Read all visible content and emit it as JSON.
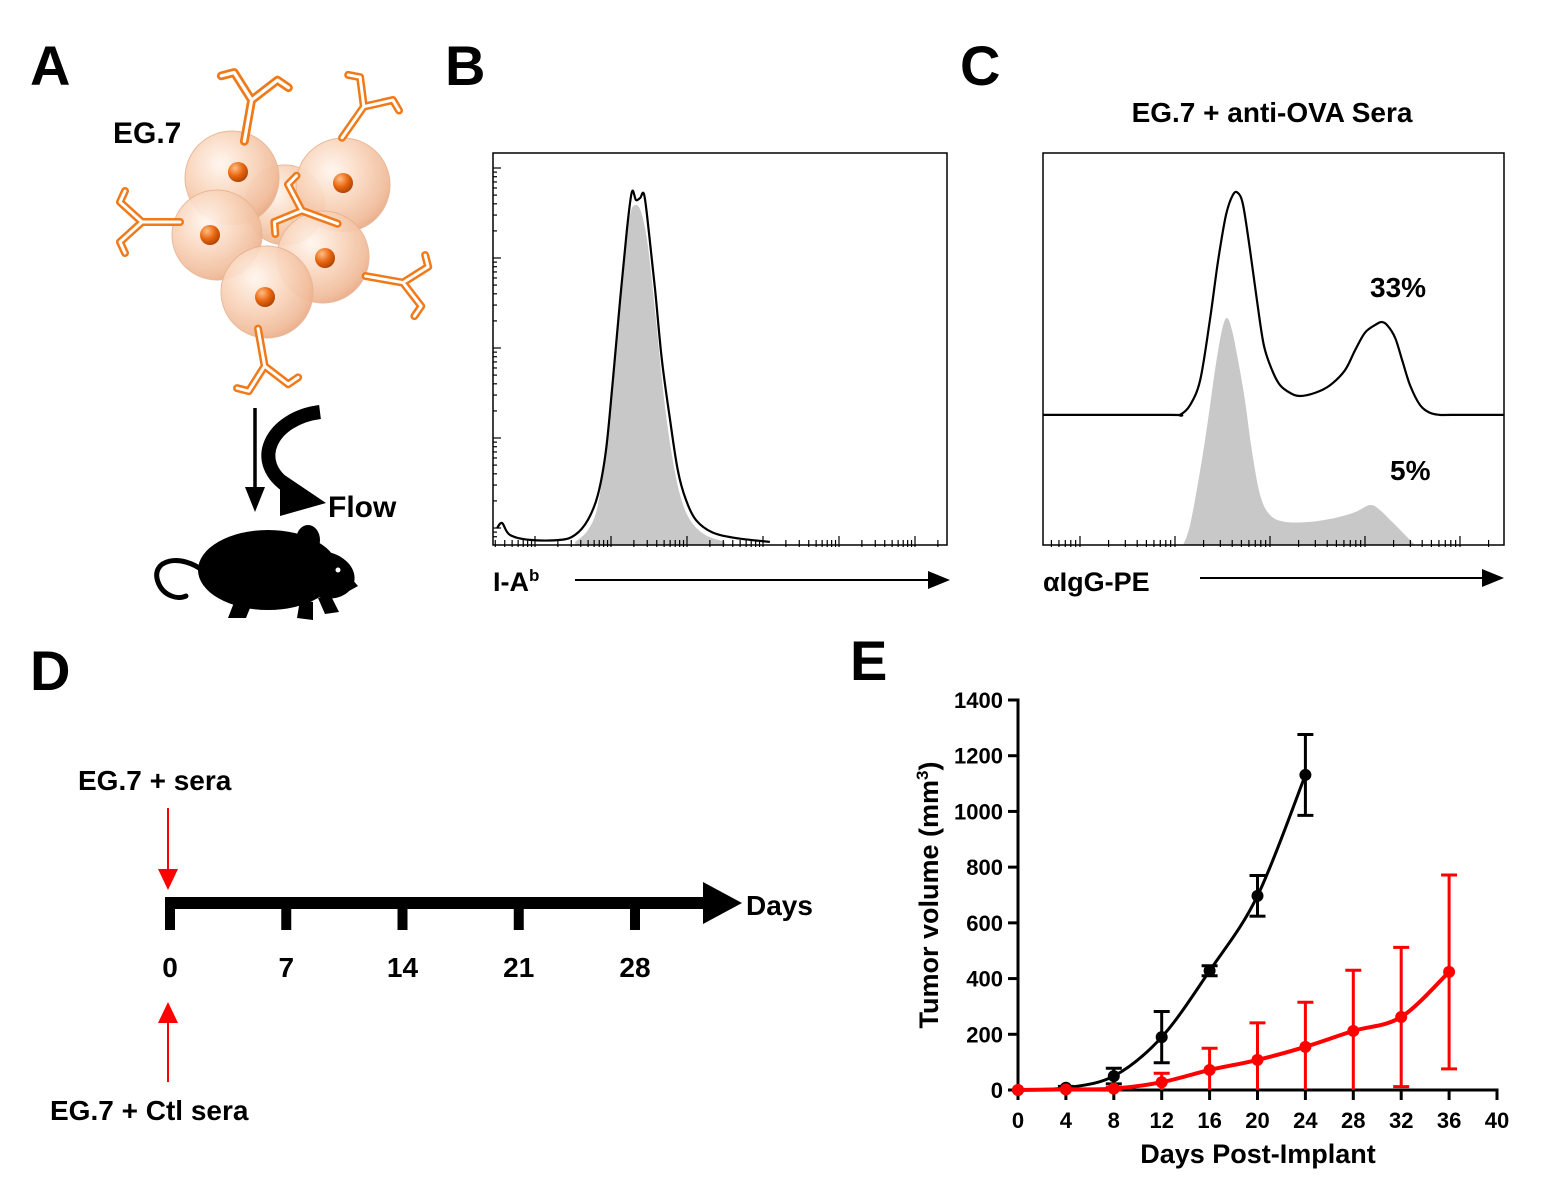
{
  "panels": {
    "A": {
      "letter": "A",
      "cell_label": "EG.7",
      "flow_label": "Flow"
    },
    "B": {
      "letter": "B"
    },
    "C": {
      "letter": "C"
    },
    "D": {
      "letter": "D",
      "top_label": "EG.7 + sera",
      "bottom_label": "EG.7 + Ctl sera",
      "axis_label": "Days",
      "ticks": [
        "0",
        "7",
        "14",
        "21",
        "28"
      ]
    },
    "E": {
      "letter": "E"
    }
  },
  "colors": {
    "antibody": "#f07a1a",
    "arrow_red": "#ff0000"
  },
  "chart_data": [
    {
      "type": "histogram",
      "xlabel": "I-A",
      "xlabel_sup": "b",
      "xlim": [
        0,
        100
      ],
      "ylim": [
        0,
        100
      ],
      "series": [
        {
          "fill": "#c8c8c8",
          "x": [
            18.1,
            20.9,
            23.1,
            25.1,
            27.1,
            28.9,
            30.2,
            31.3,
            32.6,
            34.1,
            35.9,
            37.7,
            39.4,
            41.2,
            43.4,
            46.7,
            51.1
          ],
          "y": [
            0.8,
            3.8,
            10.2,
            26.8,
            49.7,
            72.7,
            84.2,
            86.7,
            85.0,
            76.5,
            57.4,
            37.0,
            23.0,
            12.8,
            6.4,
            2.6,
            0.8
          ]
        },
        {
          "stroke": "#000000",
          "x": [
            0.9,
            2.0,
            3.7,
            8.1,
            14.8,
            18.1,
            20.9,
            23.1,
            24.9,
            26.4,
            28.0,
            29.5,
            30.6,
            31.5,
            32.4,
            33.3,
            34.4,
            35.7,
            37.2,
            39.0,
            40.7,
            42.5,
            44.7,
            48.2,
            53.3,
            61.0
          ],
          "y": [
            4.3,
            5.6,
            2.6,
            1.3,
            1.3,
            2.6,
            6.4,
            12.8,
            24.2,
            42.1,
            62.5,
            80.4,
            90.1,
            88.0,
            88.5,
            89.3,
            79.1,
            65.1,
            47.2,
            31.9,
            19.1,
            11.5,
            6.4,
            3.3,
            1.8,
            0.8
          ]
        }
      ]
    },
    {
      "type": "histogram",
      "title": "EG.7 + anti-OVA Sera",
      "xlabel": "αIgG-PE",
      "xlim": [
        0,
        100
      ],
      "ylim": [
        0,
        100
      ],
      "annotations": [
        "33%",
        "5%"
      ],
      "series": [
        {
          "fill": "#c8c8c8",
          "x": [
            30.4,
            31.9,
            34.1,
            35.8,
            37.3,
            38.8,
            39.9,
            41.0,
            42.3,
            43.8,
            45.3,
            47.1,
            49.2,
            52.5,
            57.9,
            63.3,
            67.7,
            71.0,
            73.1,
            75.3,
            77.5,
            79.6,
            80.7
          ],
          "y": [
            0,
            5.1,
            19.1,
            31.9,
            44.6,
            54.8,
            57.9,
            54.8,
            47.2,
            37.0,
            24.2,
            12.8,
            7.7,
            5.9,
            5.9,
            6.9,
            8.4,
            10.2,
            8.9,
            6.4,
            3.8,
            1.3,
            0
          ]
        },
        {
          "stroke": "#000000",
          "x": [
            0,
            27.5,
            29.7,
            31.9,
            34.1,
            36.2,
            38.0,
            39.7,
            41.2,
            42.3,
            43.4,
            44.9,
            46.4,
            47.9,
            49.7,
            51.4,
            53.6,
            55.7,
            59.0,
            62.3,
            65.5,
            67.7,
            69.8,
            72.0,
            73.5,
            74.8,
            76.4,
            77.9,
            79.6,
            81.8,
            84.0,
            86.1,
            88.5,
            100
          ],
          "y": [
            33.2,
            33.2,
            33.2,
            35.7,
            42.1,
            57.4,
            72.7,
            84.2,
            89.3,
            89.8,
            86.7,
            75.3,
            62.5,
            51.0,
            44.6,
            40.8,
            38.8,
            38.0,
            38.8,
            40.8,
            44.6,
            49.7,
            54.1,
            56.1,
            56.9,
            55.9,
            52.8,
            47.2,
            40.8,
            35.7,
            33.7,
            33.2,
            33.2,
            33.2
          ]
        }
      ]
    },
    {
      "type": "line",
      "xlabel": "Days Post-Implant",
      "ylabel": "Tumor volume (mm",
      "ylabel_sup": "3",
      "ylabel_end": ")",
      "xlim": [
        0,
        40
      ],
      "ylim": [
        0,
        1400
      ],
      "xticks": [
        "0",
        "4",
        "8",
        "12",
        "16",
        "20",
        "24",
        "28",
        "32",
        "36",
        "40"
      ],
      "yticks": [
        "0",
        "200",
        "400",
        "600",
        "800",
        "1000",
        "1200",
        "1400"
      ],
      "series": [
        {
          "color": "#000000",
          "x": [
            0,
            4,
            8,
            12,
            16,
            20,
            24
          ],
          "y": [
            0,
            8,
            50,
            190,
            428,
            697,
            1131
          ],
          "err": [
            0,
            5,
            28,
            92,
            18,
            73,
            145
          ]
        },
        {
          "color": "#ff0000",
          "x": [
            0,
            4,
            8,
            12,
            16,
            20,
            24,
            28,
            32,
            36
          ],
          "y": [
            0,
            2,
            5,
            28,
            72,
            108,
            155,
            212,
            262,
            424
          ],
          "err": [
            0,
            2,
            4,
            32,
            78,
            133,
            160,
            218,
            250,
            348
          ]
        }
      ]
    }
  ]
}
